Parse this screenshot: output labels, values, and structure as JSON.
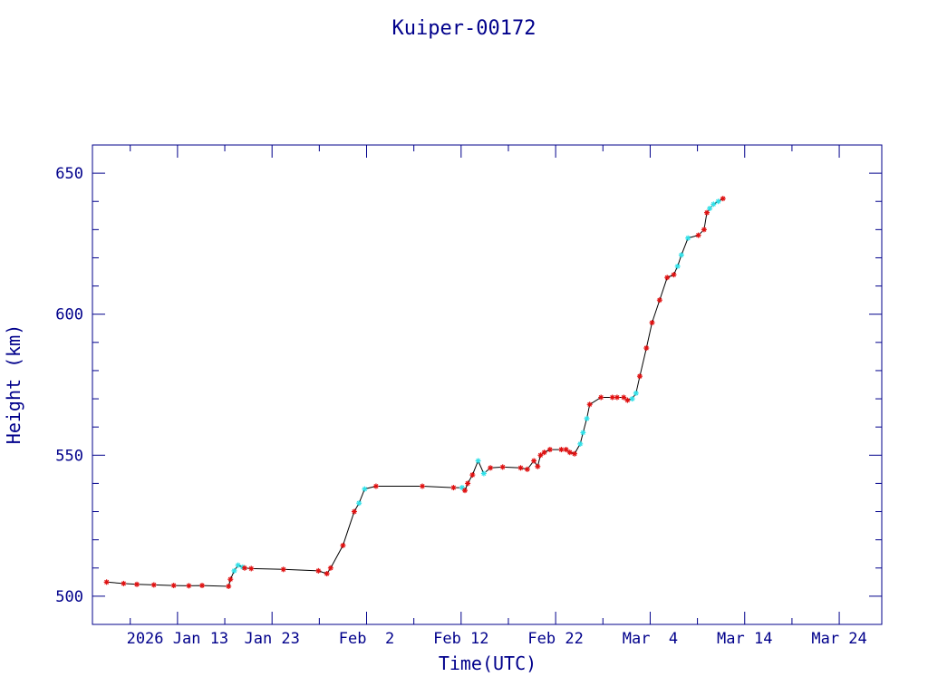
{
  "chart_data": {
    "type": "scatter",
    "title": "Kuiper-00172",
    "xlabel": "Time(UTC)",
    "ylabel": "Height (km)",
    "x_start": "2026-01-04",
    "x_end": "2026-03-28",
    "xlim_days": [
      0,
      83.5
    ],
    "ylim": [
      490,
      660
    ],
    "x_major_ticks": [
      {
        "day": 9,
        "label": "2026 Jan 13"
      },
      {
        "day": 19,
        "label": "Jan 23"
      },
      {
        "day": 29,
        "label": "Feb  2"
      },
      {
        "day": 39,
        "label": "Feb 12"
      },
      {
        "day": 49,
        "label": "Feb 22"
      },
      {
        "day": 59,
        "label": "Mar  4"
      },
      {
        "day": 69,
        "label": "Mar 14"
      },
      {
        "day": 79,
        "label": "Mar 24"
      }
    ],
    "y_ticks": [
      500,
      550,
      600,
      650
    ],
    "grid": false,
    "colors": {
      "axes": "#00008b",
      "line": "#000000",
      "primary_marker": "#e01010",
      "secondary_marker": "#30e0e8"
    },
    "series": [
      {
        "name": "height",
        "x": [
          1.5,
          3.3,
          4.7,
          6.5,
          8.6,
          10.2,
          11.6,
          14.4,
          14.6,
          15.0,
          15.4,
          15.9,
          16.1,
          16.8,
          20.2,
          23.9,
          24.8,
          25.2,
          26.5,
          27.7,
          28.2,
          28.8,
          30.0,
          34.9,
          38.2,
          39.1,
          39.4,
          39.7,
          40.2,
          40.8,
          41.4,
          42.1,
          43.4,
          45.3,
          46.0,
          46.7,
          47.1,
          47.4,
          47.8,
          48.4,
          49.6,
          50.1,
          50.5,
          51.0,
          51.6,
          51.9,
          52.3,
          52.6,
          53.8,
          55.0,
          55.5,
          56.2,
          56.6,
          57.1,
          57.5,
          57.9,
          58.6,
          59.2,
          60.0,
          60.8,
          61.5,
          61.9,
          62.3,
          63.0,
          64.1,
          64.7,
          65.0,
          65.3,
          65.7,
          66.2,
          66.7
        ],
        "y": [
          505,
          504.5,
          504.2,
          504,
          503.8,
          503.7,
          503.8,
          503.5,
          506,
          509,
          511,
          510.3,
          510,
          509.8,
          509.5,
          509,
          508,
          510,
          518,
          530,
          533,
          538,
          539,
          539,
          538.5,
          538.5,
          537.5,
          540,
          543,
          548,
          543.5,
          545.5,
          545.8,
          545.5,
          545,
          548,
          546,
          550,
          551,
          552,
          552,
          552,
          551,
          550.5,
          554,
          558,
          563,
          568,
          570.5,
          570.5,
          570.5,
          570.5,
          569.5,
          570,
          572,
          578,
          588,
          597,
          605,
          613,
          614,
          617,
          621,
          627,
          628,
          630,
          636,
          637.5,
          639,
          640,
          641
        ],
        "markers": [
          "r",
          "r",
          "r",
          "r",
          "r",
          "r",
          "r",
          "r",
          "r",
          "c",
          "c",
          "c",
          "r",
          "r",
          "r",
          "r",
          "r",
          "r",
          "r",
          "r",
          "c",
          "c",
          "r",
          "r",
          "r",
          "c",
          "r",
          "r",
          "r",
          "c",
          "c",
          "r",
          "r",
          "r",
          "r",
          "r",
          "r",
          "r",
          "r",
          "r",
          "r",
          "r",
          "r",
          "r",
          "c",
          "c",
          "c",
          "r",
          "r",
          "r",
          "r",
          "r",
          "r",
          "c",
          "c",
          "r",
          "r",
          "r",
          "r",
          "r",
          "r",
          "c",
          "c",
          "c",
          "r",
          "r",
          "r",
          "c",
          "c",
          "c",
          "r"
        ]
      }
    ]
  }
}
